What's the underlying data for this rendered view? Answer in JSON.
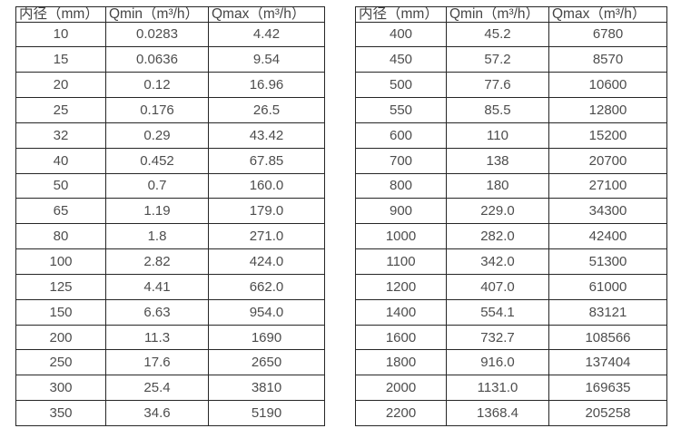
{
  "page": {
    "background": "#ffffff"
  },
  "style": {
    "border_color": "#262626",
    "text_color": "#4d4d4d"
  },
  "column_keys": [
    "diameter",
    "qmin",
    "qmax"
  ],
  "tables": [
    {
      "name": "small-diameter-flow-table",
      "columns": [
        "内径（mm）",
        "Qmin（m³/h）",
        "Qmax（m³/h）"
      ],
      "rows": [
        [
          "10",
          "0.0283",
          "4.42"
        ],
        [
          "15",
          "0.0636",
          "9.54"
        ],
        [
          "20",
          "0.12",
          "16.96"
        ],
        [
          "25",
          "0.176",
          "26.5"
        ],
        [
          "32",
          "0.29",
          "43.42"
        ],
        [
          "40",
          "0.452",
          "67.85"
        ],
        [
          "50",
          "0.7",
          "160.0"
        ],
        [
          "65",
          "1.19",
          "179.0"
        ],
        [
          "80",
          "1.8",
          "271.0"
        ],
        [
          "100",
          "2.82",
          "424.0"
        ],
        [
          "125",
          "4.41",
          "662.0"
        ],
        [
          "150",
          "6.63",
          "954.0"
        ],
        [
          "200",
          "11.3",
          "1690"
        ],
        [
          "250",
          "17.6",
          "2650"
        ],
        [
          "300",
          "25.4",
          "3810"
        ],
        [
          "350",
          "34.6",
          "5190"
        ]
      ]
    },
    {
      "name": "large-diameter-flow-table",
      "columns": [
        "内径（mm）",
        "Qmin（m³/h）",
        "Qmax（m³/h）"
      ],
      "rows": [
        [
          "400",
          "45.2",
          "6780"
        ],
        [
          "450",
          "57.2",
          "8570"
        ],
        [
          "500",
          "77.6",
          "10600"
        ],
        [
          "550",
          "85.5",
          "12800"
        ],
        [
          "600",
          "110",
          "15200"
        ],
        [
          "700",
          "138",
          "20700"
        ],
        [
          "800",
          "180",
          "27100"
        ],
        [
          "900",
          "229.0",
          "34300"
        ],
        [
          "1000",
          "282.0",
          "42400"
        ],
        [
          "1100",
          "342.0",
          "51300"
        ],
        [
          "1200",
          "407.0",
          "61000"
        ],
        [
          "1400",
          "554.1",
          "83121"
        ],
        [
          "1600",
          "732.7",
          "108566"
        ],
        [
          "1800",
          "916.0",
          "137404"
        ],
        [
          "2000",
          "1131.0",
          "169635"
        ],
        [
          "2200",
          "1368.4",
          "205258"
        ]
      ]
    }
  ]
}
